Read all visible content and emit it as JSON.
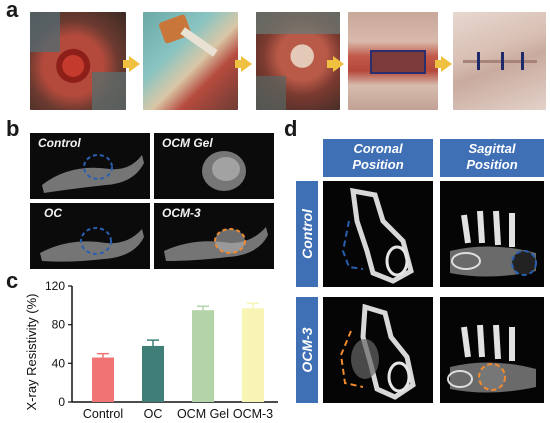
{
  "panels": {
    "a": "a",
    "b": "b",
    "c": "c",
    "d": "d"
  },
  "panel_b": {
    "labels": [
      "Control",
      "OCM Gel",
      "OC",
      "OCM-3"
    ]
  },
  "panel_d": {
    "columns": [
      "Coronal\nPosition",
      "Sagittal\nPosition"
    ],
    "col1_line1": "Coronal",
    "col1_line2": "Position",
    "col2_line1": "Sagittal",
    "col2_line2": "Position",
    "rows": [
      "Control",
      "OCM-3"
    ]
  },
  "colors": {
    "marker_blue": "#2a5fb0",
    "marker_orange": "#f08a30",
    "header_blue": "#3f6fb5",
    "arrow": "#f0c040"
  },
  "chart_data": {
    "type": "bar",
    "categories": [
      "Control",
      "OC",
      "OCM Gel",
      "OCM-3"
    ],
    "values": [
      46,
      58,
      95,
      97
    ],
    "errors": [
      4,
      6,
      4,
      5
    ],
    "colors": [
      "#f07474",
      "#3f7f78",
      "#b3d4a8",
      "#f8f4b4"
    ],
    "ylabel": "X-ray Resistivity (%)",
    "xlabel": "",
    "ylim": [
      0,
      120
    ],
    "yticks": [
      0,
      40,
      80,
      120
    ],
    "grid": false
  }
}
